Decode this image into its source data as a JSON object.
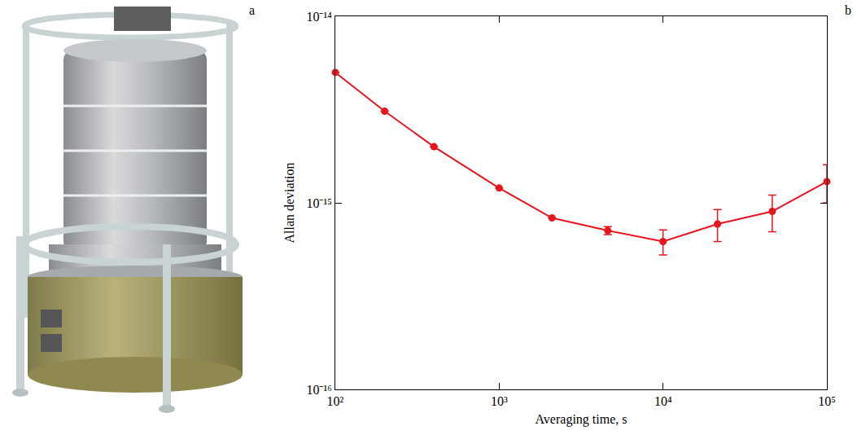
{
  "panel_labels": [
    "a",
    "b"
  ],
  "chart_data": {
    "type": "line",
    "x_label": "Averaging time, s",
    "y_label": "Allan deviation",
    "log": true,
    "grid": false,
    "marker": "circle",
    "color": "#e8141e",
    "x": [
      100,
      200,
      400,
      1000,
      2100,
      4600,
      10000,
      21500,
      46400,
      100000
    ],
    "values": [
      5e-15,
      3.1e-15,
      2e-15,
      1.2e-15,
      8.3e-16,
      7.1e-16,
      6.2e-16,
      7.7e-16,
      9e-16,
      1.3e-15
    ],
    "errors": [
      0,
      0,
      0,
      0,
      0,
      3.5e-17,
      9.5e-17,
      1.5e-16,
      2e-16,
      3e-16
    ],
    "xlim": [
      100,
      100000
    ],
    "ylim": [
      1e-16,
      1e-14
    ],
    "xticks": [
      {
        "value": 100,
        "label": "10²"
      },
      {
        "value": 1000,
        "label": "10³"
      },
      {
        "value": 10000,
        "label": "10⁴"
      },
      {
        "value": 100000,
        "label": "10⁵"
      }
    ],
    "yticks": [
      {
        "value": 1e-16,
        "label": "10⁻¹⁶"
      },
      {
        "value": 1e-15,
        "label": "10⁻¹⁵"
      },
      {
        "value": 1e-14,
        "label": "10⁻¹⁴"
      }
    ]
  }
}
